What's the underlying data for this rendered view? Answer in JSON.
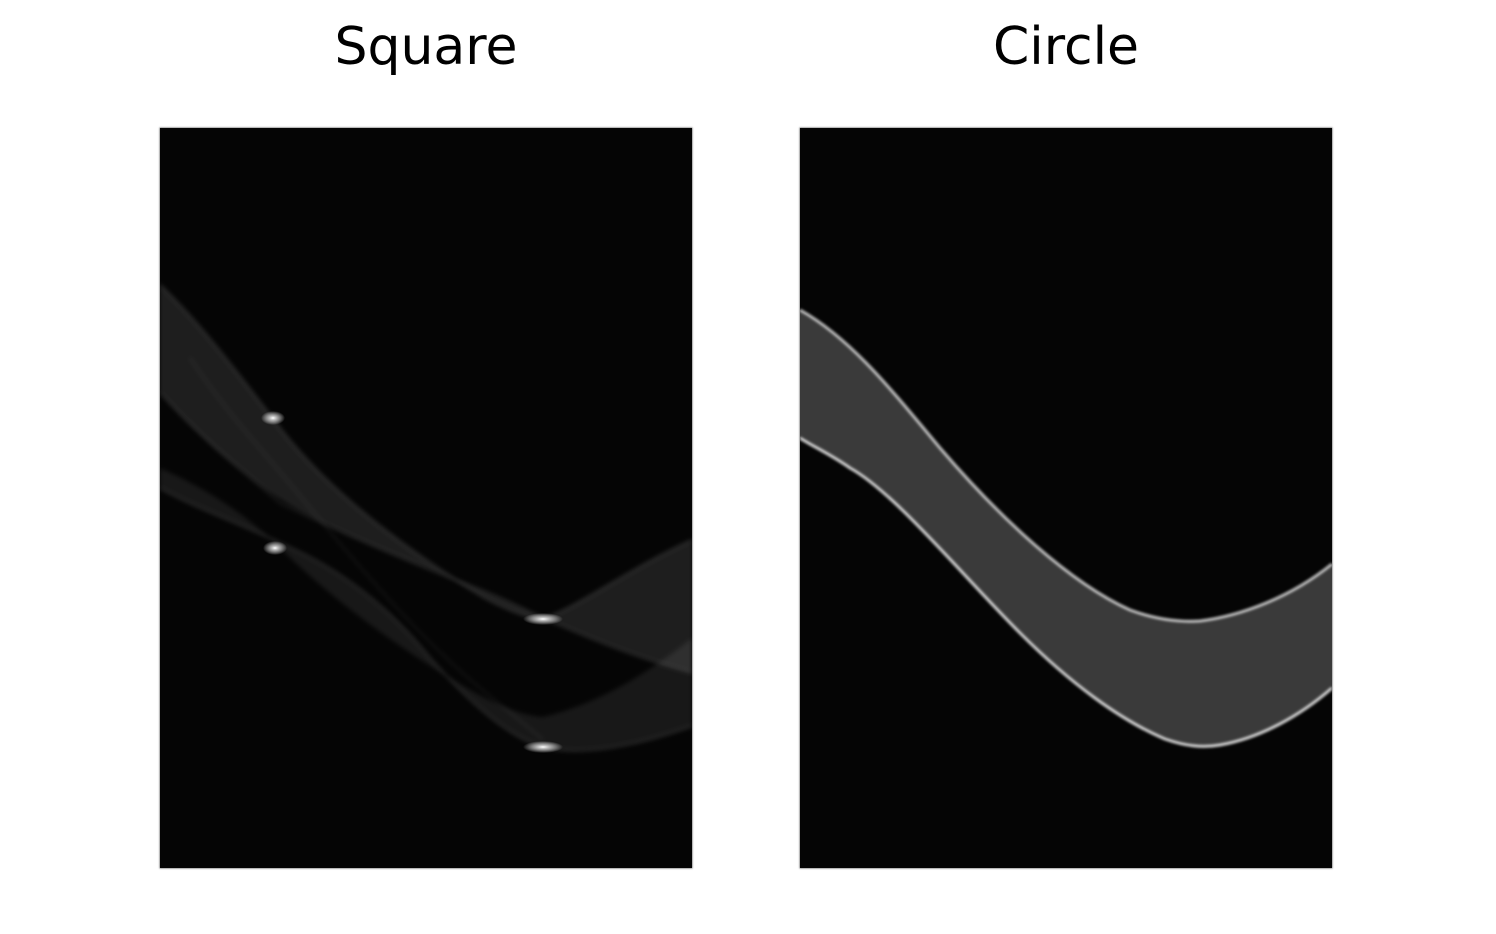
{
  "panels": [
    {
      "title": "Square",
      "image": "sinogram-of-square",
      "background": "#050505",
      "trace_color": "#ffffff"
    },
    {
      "title": "Circle",
      "image": "sinogram-of-circle",
      "background": "#050505",
      "trace_color": "#ffffff"
    }
  ]
}
